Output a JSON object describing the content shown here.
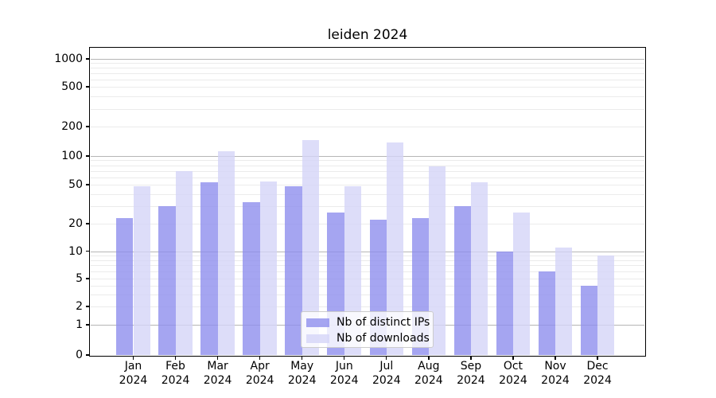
{
  "title": "leiden 2024",
  "chart_data": {
    "type": "bar",
    "title": "leiden 2024",
    "categories": [
      "Jan 2024",
      "Feb 2024",
      "Mar 2024",
      "Apr 2024",
      "May 2024",
      "Jun 2024",
      "Jul 2024",
      "Aug 2024",
      "Sep 2024",
      "Oct 2024",
      "Nov 2024",
      "Dec 2024"
    ],
    "series": [
      {
        "name": "Nb of distinct IPs",
        "color": "#8f8fee",
        "values": [
          23,
          30,
          53,
          33,
          48,
          26,
          22,
          23,
          30,
          10,
          6,
          4
        ]
      },
      {
        "name": "Nb of downloads",
        "color": "#d5d5f8",
        "values": [
          48,
          70,
          112,
          54,
          145,
          48,
          137,
          78,
          53,
          26,
          11,
          9
        ]
      }
    ],
    "xlabel": "",
    "ylabel": "",
    "yscale": "log-with-zero",
    "y_tick_values": [
      0,
      1,
      2,
      5,
      10,
      20,
      50,
      100,
      200,
      500,
      1000
    ],
    "ylim": [
      0,
      1300
    ],
    "grid": "both",
    "legend_position": "lower center"
  },
  "colors": {
    "series_distinct_ips": "#8f8fee",
    "series_downloads": "#d5d5f8",
    "grid_major": "#b6b6b6",
    "grid_minor": "#ebebeb",
    "axis": "#000000",
    "legend_border": "#cccccc"
  }
}
